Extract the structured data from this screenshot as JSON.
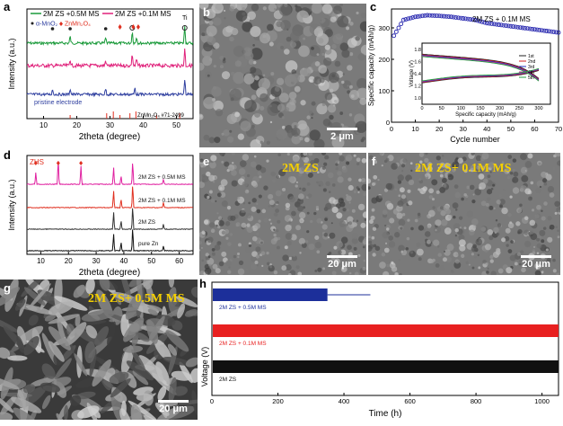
{
  "panels": {
    "a": {
      "label": "a",
      "legend": [
        "2M ZS +0.5M MS",
        "2M ZS +0.1M MS"
      ],
      "marker_legend": [
        "α-MnO₂",
        "ZnMn₂O₄"
      ],
      "ti_label": "Ti",
      "pristine_label": "pristine electrode",
      "ref_label": "ZnMn₂O₄ #71-2499",
      "xlabel": "2theta (degree)",
      "ylabel": "Intensity (a.u.)",
      "xticks": [
        "10",
        "20",
        "30",
        "40",
        "50"
      ],
      "colors": {
        "s05": "#1a9a3a",
        "s01": "#e0207a",
        "pristine": "#3040a0",
        "ref": "#e03020"
      }
    },
    "b": {
      "label": "b",
      "scale": "2 μm"
    },
    "c": {
      "label": "c",
      "title": "2M ZS + 0.1M MS",
      "xlabel": "Cycle number",
      "ylabel": "Specific capacity (mAh/g)",
      "xticks": [
        "0",
        "10",
        "20",
        "30",
        "40",
        "50",
        "60",
        "70"
      ],
      "yticks": [
        "0",
        "100",
        "200",
        "300"
      ],
      "inset": {
        "xlabel": "Specific capacity (mAh/g)",
        "ylabel": "Voltage (V)",
        "xticks": [
          "0",
          "50",
          "100",
          "150",
          "200",
          "250",
          "300"
        ],
        "yticks": [
          "1.0",
          "1.2",
          "1.4",
          "1.6",
          "1.8"
        ],
        "legend": [
          "1st",
          "2nd",
          "3rd",
          "4th",
          "5th"
        ],
        "legend_colors": [
          "#222222",
          "#d02020",
          "#2030c0",
          "#c030a0",
          "#20a040"
        ]
      }
    },
    "d": {
      "label": "d",
      "zhs_label": "ZHS",
      "traces": [
        "2M ZS + 0.5M MS",
        "2M ZS + 0.1M MS",
        "2M ZS",
        "pure Zn"
      ],
      "xlabel": "2theta (degree)",
      "ylabel": "Intensity (a.u.)",
      "xticks": [
        "10",
        "20",
        "30",
        "40",
        "50",
        "60"
      ],
      "colors": {
        "s05": "#e020a0",
        "s01": "#e03020",
        "zs": "#333333",
        "zn": "#111111"
      }
    },
    "e": {
      "label": "e",
      "caption": "2M ZS",
      "scale": "20 μm"
    },
    "f": {
      "label": "f",
      "caption": "2M ZS+ 0.1M MS",
      "scale": "20 μm"
    },
    "g": {
      "label": "g",
      "caption": "2M ZS+ 0.5M MS",
      "scale": "20 μm"
    },
    "h": {
      "label": "h",
      "traces": [
        "2M ZS + 0.5M MS",
        "2M ZS + 0.1M MS",
        "2M ZS"
      ],
      "colors": [
        "#1c2f9a",
        "#e82020",
        "#111111"
      ],
      "xlabel": "Time (h)",
      "ylabel": "Voltage (V)",
      "xticks": [
        "0",
        "200",
        "400",
        "600",
        "800",
        "1000"
      ]
    }
  },
  "chart_data": [
    {
      "type": "line",
      "panel": "a",
      "xlabel": "2theta (degree)",
      "ylabel": "Intensity (a.u.)",
      "xlim": [
        5,
        55
      ],
      "series": [
        {
          "name": "2M ZS +0.5M MS",
          "peaks": [
            18,
            28.7,
            36.7,
            38,
            52.5
          ]
        },
        {
          "name": "2M ZS +0.1M MS",
          "peaks": [
            18,
            28.7,
            36.7,
            38,
            52.5
          ]
        },
        {
          "name": "pristine electrode",
          "peaks": [
            12.7,
            18,
            28.7,
            37.5,
            52.5
          ]
        }
      ]
    },
    {
      "type": "scatter",
      "panel": "c",
      "title": "2M ZS + 0.1M MS",
      "xlabel": "Cycle number",
      "ylabel": "Specific capacity (mAh/g)",
      "xlim": [
        0,
        70
      ],
      "ylim": [
        0,
        360
      ],
      "x": [
        1,
        5,
        10,
        15,
        20,
        25,
        30,
        35,
        40,
        45,
        50,
        55,
        60,
        65,
        70
      ],
      "y": [
        275,
        325,
        335,
        340,
        338,
        335,
        330,
        325,
        315,
        310,
        305,
        300,
        295,
        290,
        285
      ]
    },
    {
      "type": "line",
      "panel": "d",
      "xlabel": "2theta (degree)",
      "ylabel": "Intensity (a.u.)",
      "xlim": [
        5,
        65
      ],
      "series": [
        {
          "name": "2M ZS + 0.5M MS",
          "peaks": [
            8.2,
            16.3,
            24.5,
            36.3,
            39,
            43.2,
            54.3
          ]
        },
        {
          "name": "2M ZS + 0.1M MS",
          "peaks": [
            36.3,
            39,
            43.2,
            54.3
          ]
        },
        {
          "name": "2M ZS",
          "peaks": [
            36.3,
            39,
            43.2,
            54.3
          ]
        },
        {
          "name": "pure Zn",
          "peaks": [
            36.3,
            39,
            43.2,
            54.3
          ]
        }
      ]
    },
    {
      "type": "area",
      "panel": "h",
      "xlabel": "Time (h)",
      "ylabel": "Voltage (V)",
      "xlim": [
        0,
        1050
      ],
      "series": [
        {
          "name": "2M ZS + 0.5M MS",
          "x_end": 350
        },
        {
          "name": "2M ZS + 0.1M MS",
          "x_end": 1050
        },
        {
          "name": "2M ZS",
          "x_end": 1050
        }
      ]
    }
  ]
}
